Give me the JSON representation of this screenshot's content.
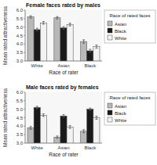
{
  "chart_data": [
    {
      "type": "bar",
      "title": "Female faces rated by males",
      "categories": [
        "White",
        "Asian",
        "Black"
      ],
      "series": [
        {
          "name": "Asian",
          "color": "#b8b8b8",
          "values": [
            5.6,
            5.55,
            4.15
          ],
          "errors": [
            0.07,
            0.07,
            0.1
          ]
        },
        {
          "name": "Black",
          "color": "#1a1a1a",
          "values": [
            4.85,
            4.95,
            3.6
          ],
          "errors": [
            0.08,
            0.08,
            0.09
          ]
        },
        {
          "name": "White",
          "color": "#f2f2f2",
          "values": [
            5.25,
            5.15,
            3.85
          ],
          "errors": [
            0.08,
            0.08,
            0.09
          ]
        }
      ],
      "xlabel": "Race of rater",
      "ylabel": "Mean rated attractiveness",
      "legend_title": "Race of rated faces",
      "legend": "right",
      "grid": false,
      "ylim": [
        3.0,
        6.0
      ],
      "yticks": [
        {
          "value": 3,
          "label": "3.0"
        },
        3.5,
        {
          "value": 4,
          "label": "4.0"
        },
        4.5,
        {
          "value": 5,
          "label": "5.0"
        },
        5.5,
        {
          "value": 6,
          "label": "6.0"
        }
      ]
    },
    {
      "type": "bar",
      "title": "Male faces rated by females",
      "categories": [
        "White",
        "Asian",
        "Black"
      ],
      "series": [
        {
          "name": "Asian",
          "color": "#b8b8b8",
          "values": [
            3.9,
            3.35,
            3.7
          ],
          "errors": [
            0.08,
            0.07,
            0.09
          ]
        },
        {
          "name": "Black",
          "color": "#1a1a1a",
          "values": [
            5.1,
            4.6,
            5.0
          ],
          "errors": [
            0.07,
            0.08,
            0.07
          ]
        },
        {
          "name": "White",
          "color": "#f2f2f2",
          "values": [
            4.65,
            3.95,
            4.5
          ],
          "errors": [
            0.08,
            0.08,
            0.09
          ]
        }
      ],
      "xlabel": "Race of rater",
      "ylabel": "Mean rated attractiveness",
      "legend_title": "Race of rated faces",
      "legend": "right",
      "grid": false,
      "ylim": [
        3.0,
        6.0
      ],
      "yticks": [
        {
          "value": 3,
          "label": "3.0"
        },
        3.5,
        {
          "value": 4,
          "label": "4.0"
        },
        4.5,
        {
          "value": 5,
          "label": "5.0"
        },
        5.5,
        {
          "value": 6,
          "label": "6.0"
        }
      ]
    }
  ]
}
